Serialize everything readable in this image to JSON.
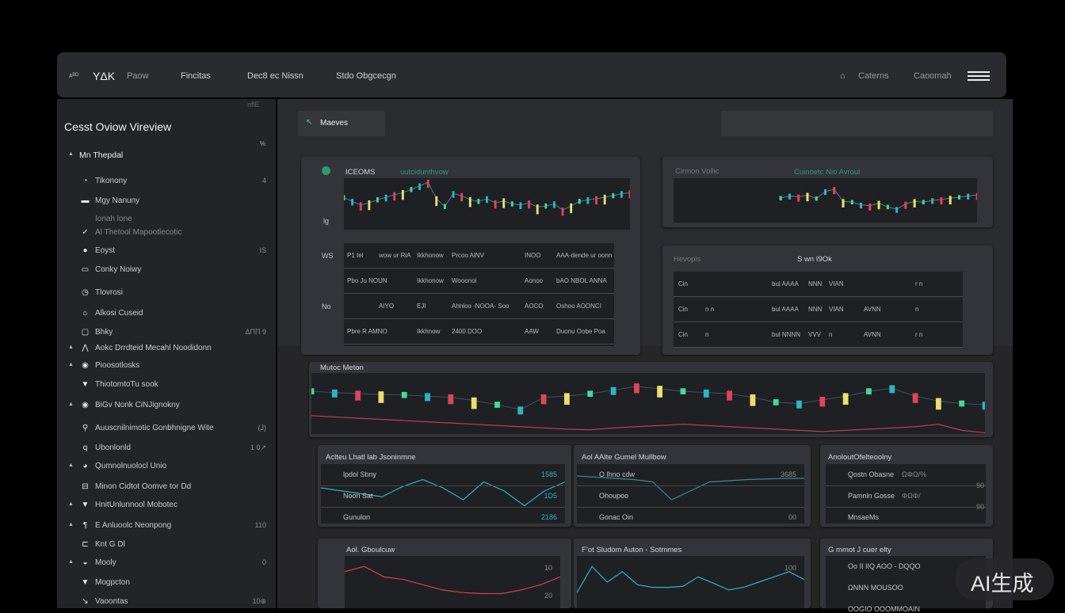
{
  "header": {
    "logo": "YΔK",
    "logo_prefix": "ᴀᴮᴰ",
    "nav": [
      "Paow",
      "Fincitas",
      "Dec8 ec Nissn",
      "Stdo Obgcecgn"
    ],
    "right": [
      "Caterns",
      "Caoomah"
    ],
    "home_icon": "home-icon",
    "menu_icon": "hamburger-icon"
  },
  "sidebar": {
    "corner": "nflE",
    "title": "Cesst Oviow  Vireview",
    "collapse": "%",
    "items": [
      {
        "label": "Mn Thepdal",
        "badge": "",
        "icon": "",
        "arrow": "▲",
        "top": true
      },
      {
        "label": "Tikonony",
        "badge": "4",
        "icon": "◔"
      },
      {
        "label": "Mgy Nanuny",
        "badge": "",
        "icon": "▬"
      },
      {
        "label": "Ionah lone",
        "badge": "",
        "icon": ""
      },
      {
        "label": "Al Thetool Mapootlecotic",
        "badge": "",
        "icon": "✓"
      },
      {
        "label": "Eoyst",
        "badge": "IS",
        "icon": "●"
      },
      {
        "label": "Conky Noiwy",
        "badge": "",
        "icon": "▭"
      },
      {
        "label": "Tlovrosi",
        "badge": "",
        "icon": "◷"
      },
      {
        "label": "Alkosi Cuseid",
        "badge": "",
        "icon": "⌂"
      },
      {
        "label": "Bhky",
        "badge": "ΔΠΠ 9",
        "icon": "▢"
      },
      {
        "label": "Aokc Drrdteid Mecahl Noodidonn",
        "badge": "",
        "icon": "⋀",
        "arrow": "▲"
      },
      {
        "label": "Pioosotlosks",
        "badge": "",
        "icon": "◉",
        "arrow": "▲"
      },
      {
        "label": "ThiotomtoTu sook",
        "badge": "",
        "icon": "▼"
      },
      {
        "label": "BiGv Nonk CiNJignokny",
        "badge": "",
        "icon": "◉",
        "arrow": "▲"
      },
      {
        "label": "Auuscnilnimotic Gonbhnigne Wite",
        "badge": "(J)",
        "icon": "⚲"
      },
      {
        "label": "Ubonlonld",
        "badge": "1 0↗",
        "icon": "q"
      },
      {
        "label": "Qumnolnuolocl Unio",
        "badge": "",
        "icon": "◕",
        "arrow": "▲"
      },
      {
        "label": "Minon Cidtot Oomve tor Dd",
        "badge": "",
        "icon": "⊟"
      },
      {
        "label": "HnitUnlunnool Mobotec",
        "badge": "",
        "icon": "▼",
        "arrow": "▲"
      },
      {
        "label": "E Anluoolc Neonpong",
        "badge": "110",
        "icon": "¶",
        "arrow": "▲"
      },
      {
        "label": "Knt G Dl",
        "badge": "",
        "icon": "⊏"
      },
      {
        "label": "Mooly",
        "badge": "0",
        "icon": "◒",
        "arrow": "▲"
      },
      {
        "label": "Mogpcton",
        "badge": "",
        "icon": "▼"
      },
      {
        "label": "Vaoontas",
        "badge": "10⊕",
        "icon": "↘"
      }
    ]
  },
  "main": {
    "tab_label": "Maeves",
    "search_placeholder": "",
    "panel1": {
      "title": "ICEOMS",
      "subtitle": "uutcidunthvow",
      "side_labels": [
        "lg",
        "WS",
        "No"
      ],
      "rows": [
        [
          "P1 tel",
          "wow ur RiA",
          "Ikkhonow",
          "Prcoo AlNV",
          "INOO",
          "AAA-dende ur oonn"
        ],
        [
          "Pbo Ju NOUN",
          "",
          "Ikkhonow",
          "Wooonoi",
          "Aonoo",
          "bAO   NBOL   ANNA"
        ],
        [
          "",
          "AIYO",
          "EJI",
          "Ahhloo -NOOA-   Soo",
          "AOCO",
          "Oshoo AOONCI"
        ],
        [
          "Pbre R AMNO",
          "",
          "Ikkhnow",
          "2400  DOO",
          "AAW",
          "Duonu Oobe   Poa"
        ]
      ]
    },
    "panel2": {
      "title": "Cirmon Vollic",
      "subtitle": "Cuinoetc  Nio Avroul"
    },
    "panel3": {
      "title": "Hevopis",
      "subtitle": "S wn  I9Ok",
      "rows": [
        [
          "Cin",
          "",
          "bul AAAA",
          "NNN",
          "VIAN",
          "",
          "r n"
        ],
        [
          "Cin",
          "n n",
          "bul AAAA",
          "NNN",
          "VIAN",
          "AVNN",
          "n"
        ],
        [
          "Cin",
          "n",
          "bul NNNN",
          "VVV",
          "n",
          "AVNN",
          "r n"
        ]
      ]
    },
    "panel4": {
      "title": "Mutoc Meton"
    },
    "cards": [
      {
        "title": "Aclteu Lhatl lab Jsoninmne",
        "labels": [
          "lpdol Sbny",
          "Noon Sat",
          "Gunulon"
        ],
        "values": [
          "1585",
          "1D5",
          "2186"
        ]
      },
      {
        "title": "Aol AAlte Gumel Mullbow",
        "labels": [
          "O lhno cdw",
          "Ohoupoo",
          "Gonac Oin"
        ],
        "values": [
          "3685",
          "",
          "00"
        ]
      },
      {
        "title": "AnoloutOfelteoolny",
        "labels": [
          "Qostn Obasne",
          "Pamnln Gosse",
          "MnsaeMs"
        ],
        "values": [
          "ΩΦΩ/%",
          "ΦΩΦ/",
          "90",
          "90"
        ]
      },
      {
        "title": "Aol.  Gboulcuw",
        "labels": [],
        "values": [
          "10",
          "20"
        ]
      },
      {
        "title": "F’ot Sludom Auton - Sotmmes",
        "labels": [],
        "values": [
          "100"
        ]
      },
      {
        "title": "G mmot J cuer elty",
        "labels": [
          "Oo II IIQ AOO - DQQO",
          "ΩNNN MOUSOO",
          "OOGIO OOOMMOAIN"
        ],
        "values": []
      }
    ]
  },
  "watermark": "AI生成",
  "colors": {
    "accent_green": "#3ddc97",
    "accent_teal": "#2bb5c4",
    "accent_red": "#e0445a",
    "accent_yellow": "#e8e070",
    "bg_panel": "#333439"
  },
  "charts": {
    "p1": [
      62,
      55,
      48,
      52,
      58,
      63,
      68,
      72,
      78,
      85,
      92,
      60,
      45,
      70,
      66,
      58,
      55,
      60,
      52,
      56,
      50,
      48,
      52,
      44,
      46,
      50,
      38,
      46,
      55,
      58,
      60,
      63,
      66,
      70,
      72
    ],
    "p2": [
      null,
      null,
      null,
      null,
      null,
      null,
      null,
      null,
      null,
      null,
      null,
      null,
      55,
      60,
      58,
      62,
      54,
      70,
      75,
      48,
      46,
      40,
      38,
      44,
      35,
      30,
      42,
      48,
      46,
      50,
      52,
      55,
      57,
      60,
      62
    ],
    "p4a": [
      70,
      68,
      66,
      65,
      64,
      62,
      60,
      55,
      48,
      40,
      60,
      62,
      66,
      72,
      78,
      74,
      70,
      68,
      66,
      60,
      52,
      50,
      56,
      62,
      70,
      75,
      62,
      54,
      50,
      48
    ],
    "p4b": [
      90,
      88,
      86,
      84,
      82,
      80,
      78,
      76,
      74,
      72,
      70,
      68,
      67,
      70,
      72,
      74,
      76,
      74,
      72,
      70,
      68,
      66,
      64,
      66,
      68,
      70,
      72,
      76,
      66,
      62
    ],
    "c1": [
      60,
      55,
      50,
      45,
      62,
      74,
      60,
      40,
      70,
      55,
      30,
      55,
      70
    ],
    "c2": [
      80,
      78,
      76,
      74,
      70,
      40,
      55,
      70,
      72,
      74,
      75,
      76,
      76
    ],
    "c4": [
      70,
      80,
      60,
      55,
      45,
      35,
      30,
      28,
      28,
      35,
      45,
      60
    ],
    "c5": [
      30,
      80,
      50,
      70,
      45,
      40,
      40,
      42,
      60,
      48,
      35,
      40,
      50,
      60,
      70,
      55
    ]
  }
}
